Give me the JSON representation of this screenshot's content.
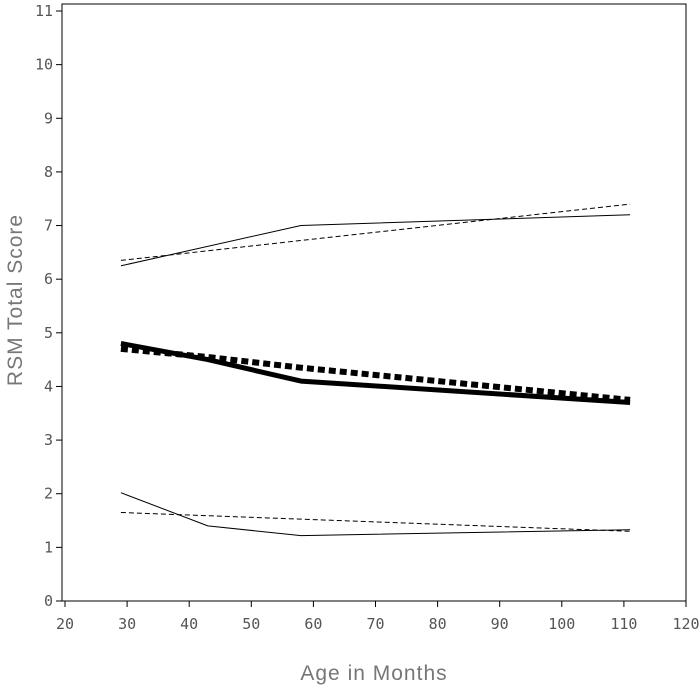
{
  "chart_data": {
    "type": "line",
    "title": "",
    "xlabel": "Age in Months",
    "ylabel": "RSM Total Score",
    "xlim": [
      20,
      120
    ],
    "ylim": [
      0,
      11
    ],
    "xticks": [
      20,
      30,
      40,
      50,
      60,
      70,
      80,
      90,
      100,
      110,
      120
    ],
    "yticks": [
      0,
      1,
      2,
      3,
      4,
      5,
      6,
      7,
      8,
      9,
      10,
      11
    ],
    "grid": false,
    "legend": "none",
    "series": [
      {
        "style": "thick-solid",
        "x": [
          29,
          43,
          58,
          111
        ],
        "y": [
          4.8,
          4.5,
          4.1,
          3.7
        ]
      },
      {
        "style": "thick-dashed",
        "x": [
          29,
          43,
          58,
          111
        ],
        "y": [
          4.7,
          4.55,
          4.35,
          3.75
        ]
      },
      {
        "style": "thin-solid",
        "x": [
          29,
          58,
          111
        ],
        "y": [
          6.25,
          7.0,
          7.2
        ]
      },
      {
        "style": "thin-dashed",
        "x": [
          29,
          111
        ],
        "y": [
          6.35,
          7.4
        ]
      },
      {
        "style": "thin-solid",
        "x": [
          29,
          43,
          58,
          111
        ],
        "y": [
          2.02,
          1.4,
          1.22,
          1.33
        ]
      },
      {
        "style": "thin-dashed",
        "x": [
          29,
          111
        ],
        "y": [
          1.65,
          1.3
        ]
      }
    ]
  }
}
